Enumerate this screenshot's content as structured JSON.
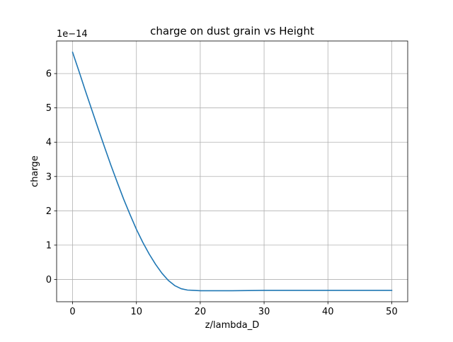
{
  "chart_data": {
    "type": "line",
    "title": "charge on dust grain vs Height",
    "xlabel": "z/lambda_D",
    "ylabel": "charge",
    "y_offset_label": "1e−14",
    "xlim": [
      -2.5,
      52.5
    ],
    "ylim": [
      -0.65,
      6.95
    ],
    "x_ticks": [
      0,
      10,
      20,
      30,
      40,
      50
    ],
    "x_tick_labels": [
      "0",
      "10",
      "20",
      "30",
      "40",
      "50"
    ],
    "y_ticks": [
      0,
      1,
      2,
      3,
      4,
      5,
      6
    ],
    "y_tick_labels": [
      "0",
      "1",
      "2",
      "3",
      "4",
      "5",
      "6"
    ],
    "grid": true,
    "legend": "none",
    "series": [
      {
        "color": "#1f77b4",
        "x": [
          0,
          1,
          2,
          3,
          4,
          5,
          6,
          7,
          8,
          9,
          10,
          11,
          12,
          13,
          14,
          15,
          16,
          17,
          18,
          19,
          20,
          22,
          25,
          30,
          35,
          40,
          45,
          50
        ],
        "y": [
          6.62,
          6.07,
          5.5,
          4.95,
          4.4,
          3.86,
          3.33,
          2.83,
          2.34,
          1.89,
          1.46,
          1.08,
          0.74,
          0.44,
          0.18,
          -0.03,
          -0.18,
          -0.27,
          -0.31,
          -0.32,
          -0.33,
          -0.33,
          -0.33,
          -0.32,
          -0.32,
          -0.32,
          -0.32,
          -0.32
        ]
      }
    ]
  }
}
